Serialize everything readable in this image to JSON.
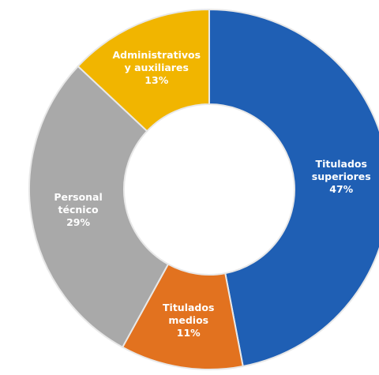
{
  "chart_data": {
    "type": "donut",
    "categories": [
      "Titulados superiores",
      "Titulados medios",
      "Personal técnico",
      "Administrativos y auxiliares"
    ],
    "values": [
      47,
      11,
      29,
      13
    ],
    "value_labels": [
      "47%",
      "11%",
      "29%",
      "13%"
    ],
    "colors": [
      "#1f5fb4",
      "#e2721f",
      "#a9a9a9",
      "#f1b500"
    ]
  }
}
